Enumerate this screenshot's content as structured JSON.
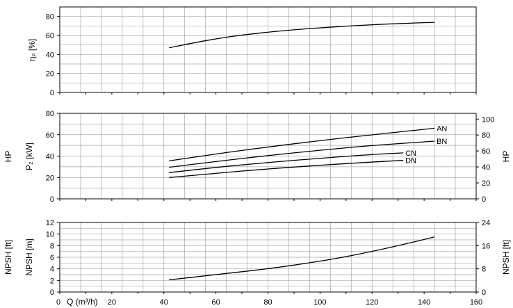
{
  "chart_data": [
    {
      "type": "line",
      "panel": "efficiency",
      "ylabel": "ηₚ [%]",
      "xlim": [
        0,
        160
      ],
      "ylim": [
        0,
        90
      ],
      "yticks": [
        0,
        20,
        40,
        60,
        80
      ],
      "grid": true,
      "series": [
        {
          "x": [
            42,
            50,
            60,
            70,
            80,
            90,
            100,
            110,
            120,
            130,
            144
          ],
          "y": [
            47,
            51.5,
            56.5,
            60.5,
            63.5,
            66,
            68,
            69.8,
            71.3,
            72.5,
            73.8
          ]
        }
      ]
    },
    {
      "type": "line",
      "panel": "power",
      "ylabel": "P₂ [kW]",
      "ylabel_right": "HP",
      "ylabel_far_left": "HP",
      "xlim": [
        0,
        160
      ],
      "ylim": [
        0,
        80
      ],
      "yticks": [
        0,
        20,
        40,
        60,
        80
      ],
      "ylim_right": [
        0,
        107.2
      ],
      "yticks_right": [
        0,
        20,
        40,
        60,
        80,
        100
      ],
      "grid": true,
      "series": [
        {
          "name": "AN",
          "x": [
            42,
            60,
            80,
            100,
            120,
            144
          ],
          "y": [
            35.5,
            42,
            48.5,
            54.5,
            60,
            66
          ]
        },
        {
          "name": "BN",
          "x": [
            42,
            60,
            80,
            100,
            120,
            144
          ],
          "y": [
            29.5,
            35,
            40.5,
            45.5,
            50,
            54
          ]
        },
        {
          "name": "CN",
          "x": [
            42,
            60,
            80,
            100,
            120,
            132
          ],
          "y": [
            24.5,
            29.5,
            34,
            38,
            41.5,
            43
          ]
        },
        {
          "name": "DN",
          "x": [
            42,
            60,
            80,
            100,
            120,
            132
          ],
          "y": [
            20,
            24,
            28,
            31.5,
            34.5,
            36
          ]
        }
      ]
    },
    {
      "type": "line",
      "panel": "npsh",
      "ylabel": "NPSH [m]",
      "ylabel_far_left": "NPSH [ft]",
      "ylabel_right": "NPSH [ft]",
      "xlabel": "Q (m³/h)",
      "xlim": [
        0,
        160
      ],
      "xticks": [
        0,
        20,
        40,
        60,
        80,
        100,
        120,
        140,
        160
      ],
      "ylim": [
        0,
        12
      ],
      "yticks": [
        0,
        2,
        4,
        6,
        8,
        10,
        12
      ],
      "ylim_right": [
        0,
        24
      ],
      "yticks_right": [
        0,
        8,
        16,
        24
      ],
      "grid": true,
      "series": [
        {
          "x": [
            42,
            60,
            80,
            100,
            110,
            120,
            130,
            144
          ],
          "y": [
            2.1,
            3,
            4,
            5.3,
            6.1,
            7,
            8,
            9.5
          ]
        }
      ]
    }
  ]
}
